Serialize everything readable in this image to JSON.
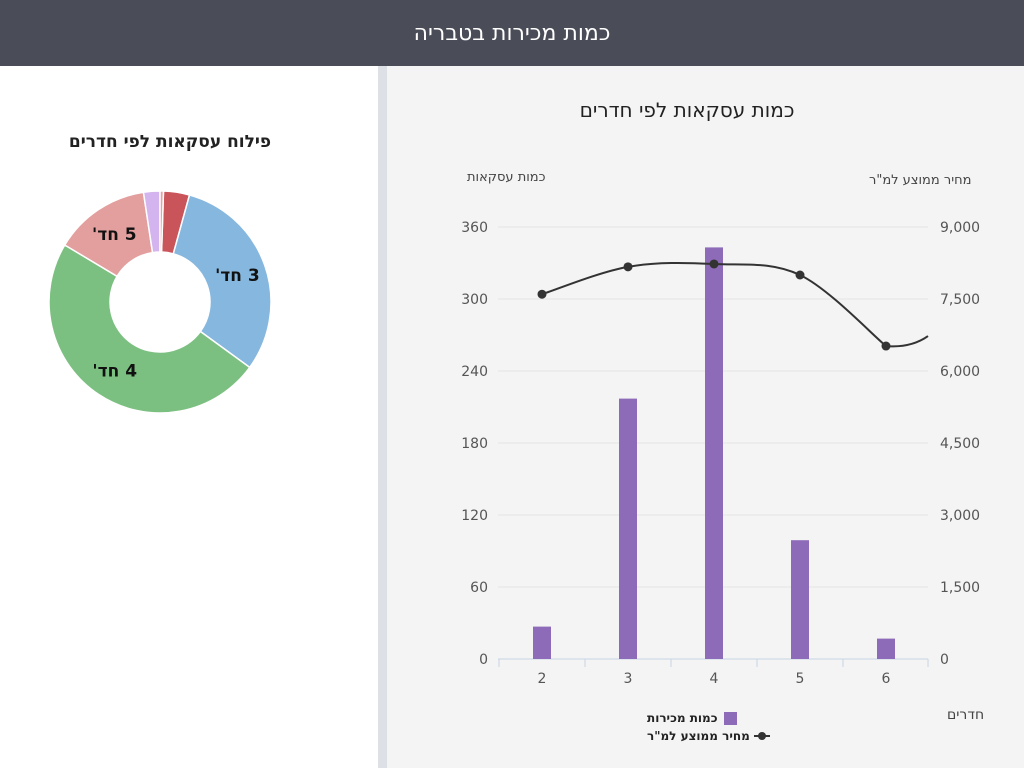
{
  "header": {
    "title": "כמות מכירות בטבריה"
  },
  "chart_data": [
    {
      "type": "pie",
      "title": "פילוח עסקאות לפי חדרים",
      "donut": true,
      "slices": [
        {
          "label": "",
          "value": 3.8,
          "color": "#c9555a"
        },
        {
          "label": "3 חד'",
          "value": 30.9,
          "color": "#86b7de"
        },
        {
          "label": "4 חד'",
          "value": 48.8,
          "color": "#7cc081"
        },
        {
          "label": "5 חד'",
          "value": 14.1,
          "color": "#e39e9e"
        },
        {
          "label": "",
          "value": 2.4,
          "color": "#d3b4ef"
        },
        {
          "label": "",
          "value": 0.5,
          "color": "#e8a0a0"
        }
      ]
    },
    {
      "type": "bar+line",
      "title": "כמות עסקאות לפי חדרים",
      "xlabel": "חדרים",
      "ylabel_left": "כמות עסקאות",
      "ylabel_right": "מחיר ממוצע למ\"ר",
      "categories": [
        "2",
        "3",
        "4",
        "5",
        "6"
      ],
      "ylim_left": [
        0,
        360
      ],
      "yticks_left": [
        "0",
        "60",
        "120",
        "180",
        "240",
        "300",
        "360"
      ],
      "ylim_right": [
        0,
        9000
      ],
      "yticks_right": [
        "0",
        "1,500",
        "3,000",
        "4,500",
        "6,000",
        "7,500",
        "9,000"
      ],
      "grid": true,
      "legend": "bottom",
      "series": [
        {
          "name": "כמות מכירות",
          "type": "bar",
          "axis": "left",
          "values": [
            27,
            217,
            343,
            99,
            17
          ],
          "color": "#8e6bb8"
        },
        {
          "name": "מחיר ממוצע למ\"ר",
          "type": "line",
          "axis": "right",
          "values": [
            7600,
            8170,
            8230,
            8000,
            6520
          ],
          "color": "#333333"
        }
      ]
    }
  ]
}
